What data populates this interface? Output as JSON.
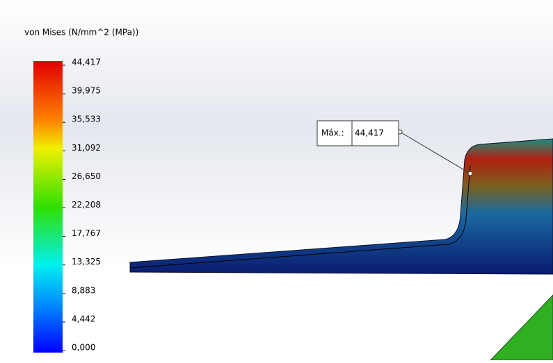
{
  "legend": {
    "title": "von Mises (N/mm^2 (MPa))",
    "ticks": [
      "44,417",
      "39,975",
      "35,533",
      "31,092",
      "26,650",
      "22,208",
      "17,767",
      "13,325",
      "8,883",
      "4,442",
      "0,000"
    ]
  },
  "probe": {
    "label": "Máx.:",
    "value": "44,417"
  }
}
